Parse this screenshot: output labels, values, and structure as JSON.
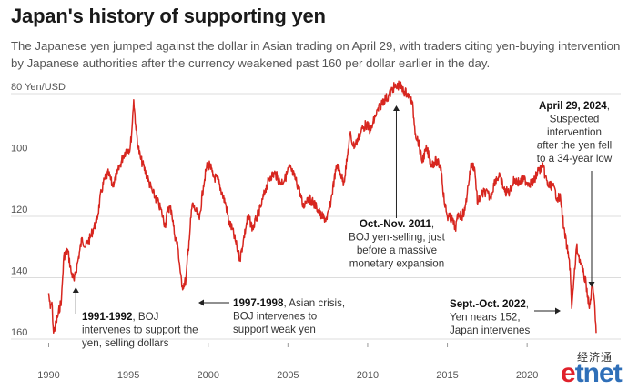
{
  "header": {
    "title": "Japan's history of supporting yen",
    "subtitle": "The Japanese yen jumped against the dollar in Asian trading on April 29, with traders citing yen-buying intervention by Japanese authorities after the currency weakened past 160 per dollar earlier in the day."
  },
  "chart_data": {
    "type": "line",
    "ylabel": "Yen/USD",
    "y_inverted": true,
    "ylim": [
      80,
      160
    ],
    "y_ticks": [
      80,
      100,
      120,
      140,
      160
    ],
    "y_tick_labels": [
      "80 Yen/USD",
      "100",
      "120",
      "140",
      "160"
    ],
    "xlim": [
      1989.8,
      2024.5
    ],
    "x_ticks": [
      1990,
      1995,
      2000,
      2005,
      2010,
      2015,
      2020
    ],
    "x_tick_labels": [
      "1990",
      "1995",
      "2000",
      "2005",
      "2010",
      "2015",
      "2020"
    ],
    "grid": "horizontal",
    "line_color": "#d7261f",
    "series": [
      {
        "x": [
          1990.0,
          1990.1,
          1990.2,
          1990.3,
          1990.55,
          1990.8,
          1990.95,
          1991.2,
          1991.4,
          1991.6,
          1991.85,
          1992.1,
          1992.3,
          1992.6,
          1992.8,
          1993.0,
          1993.3,
          1993.5,
          1993.75,
          1994.0,
          1994.3,
          1994.5,
          1994.7,
          1994.9,
          1995.1,
          1995.2,
          1995.33,
          1995.45,
          1995.6,
          1995.75,
          1995.9,
          1996.1,
          1996.3,
          1996.5,
          1996.7,
          1996.9,
          1997.1,
          1997.3,
          1997.5,
          1997.7,
          1997.9,
          1998.1,
          1998.35,
          1998.6,
          1998.8,
          1999.0,
          1999.2,
          1999.45,
          1999.7,
          1999.9,
          2000.1,
          2000.3,
          2000.6,
          2000.9,
          2001.1,
          2001.3,
          2001.5,
          2001.8,
          2002.0,
          2002.2,
          2002.5,
          2002.8,
          2003.0,
          2003.3,
          2003.6,
          2003.9,
          2004.2,
          2004.5,
          2004.8,
          2005.1,
          2005.4,
          2005.7,
          2005.95,
          2006.2,
          2006.5,
          2006.8,
          2007.1,
          2007.45,
          2007.7,
          2007.9,
          2008.1,
          2008.3,
          2008.5,
          2008.7,
          2008.9,
          2009.1,
          2009.3,
          2009.6,
          2009.9,
          2010.2,
          2010.5,
          2010.8,
          2011.0,
          2011.3,
          2011.6,
          2011.8,
          2012.0,
          2012.2,
          2012.5,
          2012.8,
          2013.0,
          2013.2,
          2013.4,
          2013.7,
          2014.0,
          2014.3,
          2014.6,
          2014.8,
          2015.0,
          2015.3,
          2015.5,
          2015.7,
          2015.9,
          2016.1,
          2016.3,
          2016.5,
          2016.7,
          2016.9,
          2017.1,
          2017.4,
          2017.7,
          2018.0,
          2018.3,
          2018.6,
          2018.9,
          2019.2,
          2019.5,
          2019.8,
          2020.1,
          2020.4,
          2020.7,
          2021.0,
          2021.3,
          2021.6,
          2021.9,
          2022.1,
          2022.3,
          2022.5,
          2022.7,
          2022.8,
          2022.95,
          2023.1,
          2023.3,
          2023.5,
          2023.7,
          2023.9,
          2024.1,
          2024.25,
          2024.33
        ],
        "values": [
          145,
          150,
          148,
          158,
          153,
          147,
          133,
          131,
          138,
          141,
          134,
          127,
          130,
          127,
          124,
          122,
          112,
          108,
          106,
          110,
          106,
          103,
          100,
          98,
          98,
          93,
          82,
          90,
          97,
          101,
          103,
          106,
          109,
          112,
          114,
          116,
          119,
          123,
          117,
          118,
          126,
          130,
          143,
          141,
          128,
          116,
          118,
          121,
          110,
          104,
          103,
          107,
          108,
          113,
          116,
          122,
          124,
          130,
          134,
          128,
          120,
          124,
          121,
          117,
          111,
          107,
          106,
          109,
          108,
          104,
          107,
          111,
          117,
          114,
          115,
          117,
          120,
          121,
          115,
          108,
          103,
          106,
          109,
          102,
          93,
          97,
          96,
          92,
          90,
          92,
          87,
          84,
          82,
          81,
          78,
          78,
          77,
          79,
          80,
          83,
          93,
          96,
          102,
          98,
          103,
          102,
          104,
          115,
          120,
          121,
          124,
          119,
          120,
          118,
          110,
          103,
          104,
          116,
          113,
          112,
          114,
          108,
          107,
          112,
          112,
          108,
          109,
          108,
          109,
          109,
          105,
          104,
          110,
          110,
          114,
          114,
          124,
          130,
          137,
          150,
          140,
          130,
          134,
          138,
          142,
          150,
          142,
          150,
          158
        ]
      }
    ],
    "annotations": [
      {
        "bold": "1991-1992",
        "lines": [
          "1991-1992, BOJ",
          "intervenes to support the",
          "yen, selling dollars"
        ]
      },
      {
        "bold": "1997-1998",
        "lines": [
          "1997-1998, Asian crisis,",
          "BOJ intervenes to",
          "support weak yen"
        ]
      },
      {
        "bold": "Oct.-Nov. 2011",
        "lines": [
          "Oct.-Nov. 2011,",
          "BOJ yen-selling, just",
          "before a massive",
          "monetary expansion"
        ]
      },
      {
        "bold": "Sept.-Oct. 2022",
        "lines": [
          "Sept.-Oct. 2022,",
          "Yen nears 152,",
          "Japan intervenes"
        ]
      },
      {
        "bold": "April 29, 2024",
        "lines": [
          "April 29, 2024,",
          "Suspected",
          "intervention",
          "after the yen fell",
          "to a 34-year low"
        ]
      }
    ]
  },
  "logo": {
    "chinese": "经济通",
    "brand_e": "e",
    "brand_rest": "tnet"
  }
}
